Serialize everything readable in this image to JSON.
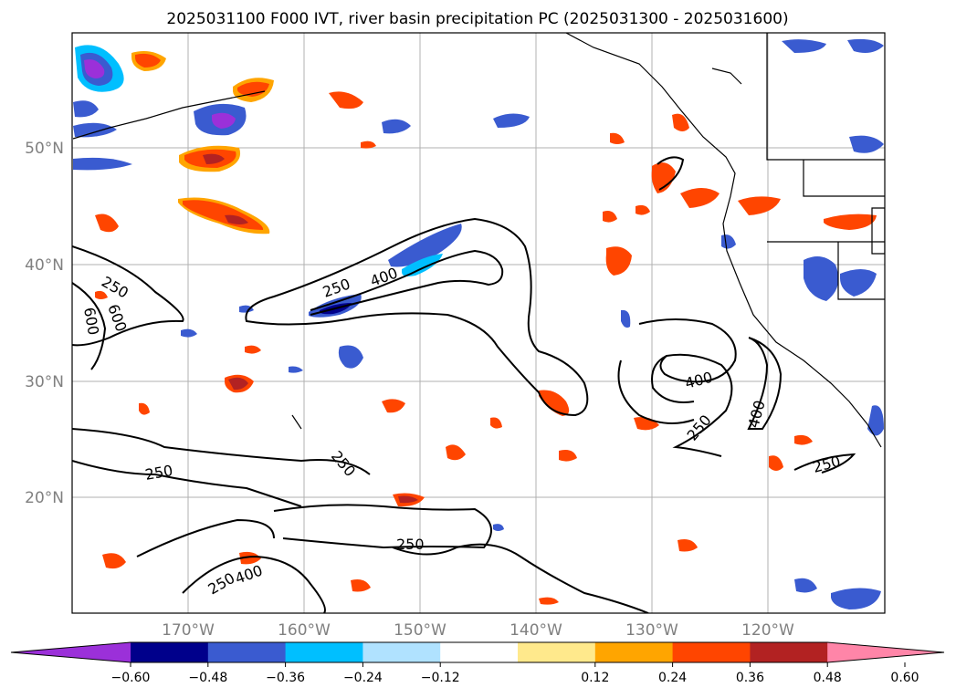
{
  "title": "2025031100 F000 IVT, river basin precipitation PC (2025031300 - 2025031600)",
  "latitude_labels": [
    "50°N",
    "40°N",
    "30°N",
    "20°N"
  ],
  "longitude_labels": [
    "170°W",
    "160°W",
    "150°W",
    "140°W",
    "130°W",
    "120°W"
  ],
  "colorbar": {
    "ticks": [
      "−0.60",
      "−0.48",
      "−0.36",
      "−0.24",
      "−0.12",
      "0.12",
      "0.24",
      "0.36",
      "0.48",
      "0.60"
    ],
    "colors": [
      "#9b30d9",
      "#00008b",
      "#3a5bd0",
      "#00bfff",
      "#b0e2ff",
      "#ffffff",
      "#ffe98c",
      "#ffa500",
      "#ff4500",
      "#b22222",
      "#ff85a8"
    ]
  },
  "contour_labels": [
    "250",
    "400",
    "600"
  ],
  "colors": {
    "coast": "#000000",
    "grid": "#b0b0b0",
    "contour": "#000000"
  }
}
